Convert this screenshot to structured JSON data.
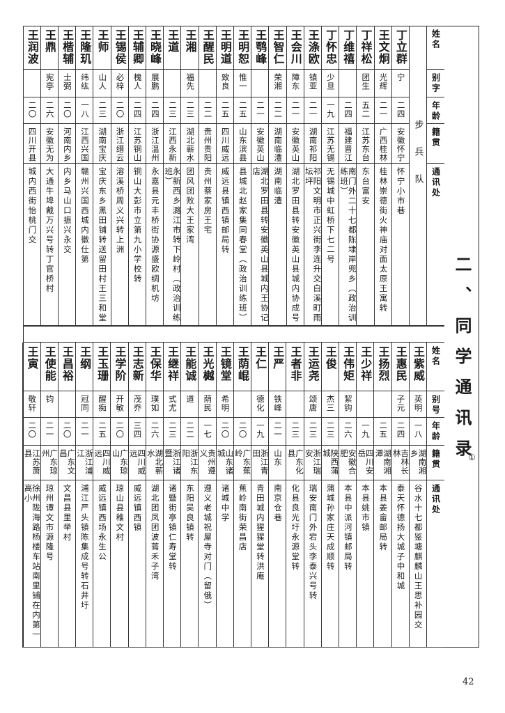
{
  "title": "二、同学通讯录",
  "title_note": "①",
  "page_number": "42",
  "top_table": {
    "headers": [
      "姓名",
      "别字",
      "年龄",
      "籍贯",
      "通讯处"
    ],
    "section": "步兵队",
    "entries": [
      {
        "name": "丁立群",
        "alias": "宁",
        "age": "二四",
        "native": "安徽怀宁",
        "address": "怀宁小市巷"
      },
      {
        "name": "王文炯",
        "alias": "光辉",
        "age": "二一",
        "native": "广西桂林",
        "address": "桂林崇德街火神庙对面太原王寓转"
      },
      {
        "name": "丁祥松",
        "alias": "团生",
        "age": "五二",
        "native": "江苏东台",
        "address": "东台富安"
      },
      {
        "name": "丁维禧",
        "alias": "",
        "age": "二四",
        "native": "福建晋江",
        "address": "南门外二十七都陈埭岸兜乡（政治训练班）"
      },
      {
        "name": "丁怀忠",
        "alias": "少旦",
        "age": "一九",
        "native": "江苏无锡",
        "address": "无锡城中虹桥下七二号"
      },
      {
        "name": "王涤欧",
        "alias": "镇亚",
        "age": "二一",
        "native": "湖南祁阳",
        "address": "祁阳文明市正兴街李连升交白溪町雨坛坪"
      },
      {
        "name": "王会川",
        "alias": "障东",
        "age": "二一",
        "native": "安徽英山",
        "address": "湖北罗田县转安徽英山县城内协成号"
      },
      {
        "name": "王智仁",
        "alias": "荣湘",
        "age": "二二",
        "native": "湖南临澧",
        "address": "湖南临澧"
      },
      {
        "name": "王鹗峰",
        "alias": "",
        "age": "二一",
        "native": "安徽英山",
        "address": "湖北罗田县转安徽英山县城内王协记店"
      },
      {
        "name": "王明恕",
        "alias": "惟一",
        "age": "二五",
        "native": "山东滨县",
        "address": "县城北赵家集同春堂（政治训练班）"
      },
      {
        "name": "王明道",
        "alias": "致良",
        "age": "二五",
        "native": "四川威远",
        "address": "威远县镇西镇邮局转"
      },
      {
        "name": "王醒民",
        "alias": "",
        "age": "二二",
        "native": "贵州贵阳",
        "address": "贵州蔡家房王宅"
      },
      {
        "name": "王湘",
        "alias": "福先",
        "age": "二三",
        "native": "湖北蕲水",
        "address": "团风团败大王家湾"
      },
      {
        "name": "王道",
        "alias": "",
        "age": "二三",
        "native": "江西永新",
        "address": "永新西乡潞江市转下岭村（政治训练班）"
      },
      {
        "name": "王晓峰",
        "alias": "展鹏",
        "age": "二四",
        "native": "浙江温州",
        "address": "永嘉县元丰桥街协源盛欧绸机坊"
      },
      {
        "name": "王辅卿",
        "alias": "槐人",
        "age": "二四",
        "native": "江苏铜山",
        "address": "铜山大彭市立第九小学校转"
      },
      {
        "name": "王锡侯",
        "alias": "必梓",
        "age": "二〇",
        "native": "浙江缙云",
        "address": "溶溪桥周义兴转上洲"
      },
      {
        "name": "王师",
        "alias": "山人",
        "age": "二三",
        "native": "湖南宝庆",
        "address": "宝庆东乡黑田铺转送留田村王三和堂"
      },
      {
        "name": "王隆玑",
        "alias": "纬纮",
        "age": "一八",
        "native": "江西兴国",
        "address": "赣州兴国西城内徽仕第"
      },
      {
        "name": "王楷辅",
        "alias": "士弼",
        "age": "二〇",
        "native": "河南内乡",
        "address": "内乡马山口振兴永交"
      },
      {
        "name": "王鼎",
        "alias": "宪亭",
        "age": "二六",
        "native": "安徽无为",
        "address": "大通牛埠戴万兴号转丁官桥村"
      },
      {
        "name": "王润波",
        "alias": "",
        "age": "二〇",
        "native": "四川开县",
        "address": "城内西街怡桃门交"
      }
    ]
  },
  "bottom_table": {
    "headers": [
      "姓名",
      "别号",
      "年龄",
      "籍贯",
      "通讯处"
    ],
    "entries": [
      {
        "name": "王紫威",
        "alias": "英明",
        "age": "一八",
        "native": "湖南湘乡",
        "address": "谷水十七都鉴塘麒麟山王思补园交"
      },
      {
        "name": "王惠民",
        "alias": "子元",
        "age": "二四",
        "native": "吉林长林",
        "address": "泰天怀德扬大城子中和城"
      },
      {
        "name": "王扬烈",
        "alias": "",
        "age": "二五",
        "native": "湖南湘潭",
        "address": "本县姜畲邮局转"
      },
      {
        "name": "王少祥",
        "alias": "",
        "age": "一九",
        "native": "四川安岳",
        "address": "本县姚市镇"
      },
      {
        "name": "王伟矩",
        "alias": "絜钩",
        "age": "二六",
        "native": "安徽合肥",
        "address": "本县中派河镇邮局转"
      },
      {
        "name": "王俊",
        "alias": "杰三",
        "age": "二三",
        "native": "陕西蒲城",
        "address": "蒲城孙家庄天成顺转"
      },
      {
        "name": "王运尧",
        "alias": "颂唐",
        "age": "二三",
        "native": "浙江瑞安",
        "address": "瑞安南门外宕头李泰兴号转"
      },
      {
        "name": "王者非",
        "alias": "",
        "age": "二三",
        "native": "广东化县",
        "address": "化县良光圩永源堂转"
      },
      {
        "name": "王严",
        "alias": "铁峰",
        "age": "二一",
        "native": "山东",
        "address": "南京仓巷"
      },
      {
        "name": "王仁",
        "alias": "德化",
        "age": "一九",
        "native": "浙江青田",
        "address": "青田城内猩猩堂转洪庵"
      },
      {
        "name": "王荫崐",
        "alias": "",
        "age": "二〇",
        "native": "广东蕉岭",
        "address": "蕉岭南街荣昌店"
      },
      {
        "name": "王镜堂",
        "alias": "希明",
        "age": "二〇",
        "native": "山东诸城",
        "address": "诸城中学"
      },
      {
        "name": "王光樾",
        "alias": "荫民",
        "age": "一七",
        "native": "贵州遵义",
        "address": "遵义老城祝屋寺对门（留俄）"
      },
      {
        "name": "王能诚",
        "alias": "道",
        "age": "二二",
        "native": "浙江东阳",
        "address": "东阳吴良镇转"
      },
      {
        "name": "王继祥",
        "alias": "式尤",
        "age": "二三",
        "native": "浙江诸暨",
        "address": "诸暨街亭镇仁寿堂转"
      },
      {
        "name": "王保华",
        "alias": "璞如",
        "age": "二六",
        "native": "湖北蕲水",
        "address": "湖北团凤团波蔫禾子湾"
      },
      {
        "name": "王志新",
        "alias": "茂乔",
        "age": "三四",
        "native": "四川威远",
        "address": "威远镇西镇"
      },
      {
        "name": "王学阶",
        "alias": "开敏",
        "age": "二〇",
        "native": "广东琼山",
        "address": "琼山县稚文村"
      },
      {
        "name": "王玉珊",
        "alias": "醒痴",
        "age": "二五",
        "native": "四川威远",
        "address": "威远镇西场永生公"
      },
      {
        "name": "王纲",
        "alias": "冠同",
        "age": "二一",
        "native": "浙江浦江",
        "address": "浦江严头镇陈集成号转石井圩"
      },
      {
        "name": "王昌裕",
        "alias": "",
        "age": "二〇",
        "native": "广东文昌",
        "address": "文昌县里举村"
      },
      {
        "name": "王使能",
        "alias": "钧",
        "age": "二一",
        "native": "广东琼州",
        "address": "琼州谭文市源隆号"
      },
      {
        "name": "王寅",
        "alias": "敬轩",
        "age": "二〇",
        "native": "江苏萧县",
        "address": "徐州陇海路杨楼车站南里铺在内第一高小"
      }
    ]
  }
}
